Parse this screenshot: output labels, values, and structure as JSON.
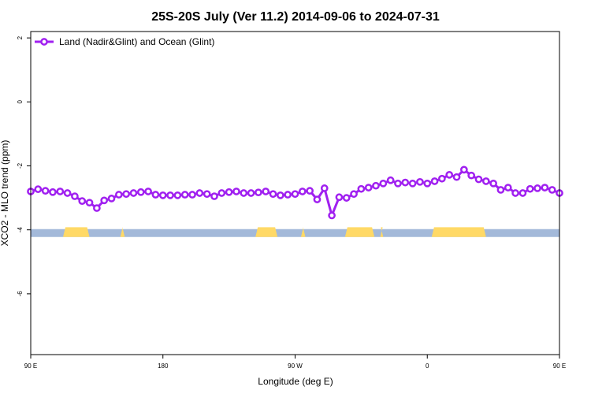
{
  "chart_data": {
    "type": "line",
    "title": "25S-20S July (Ver 11.2)   2014-09-06 to 2024-07-31",
    "xlabel": "Longitude (deg E)",
    "ylabel": "XCO2 - MLO trend (ppm)",
    "xlim": [
      90,
      450
    ],
    "ylim": [
      -7.9,
      2.2
    ],
    "x_ticks": [
      90,
      180,
      270,
      360,
      450,
      540
    ],
    "x_tick_labels": [
      "90 E",
      "180",
      "90 W",
      "0",
      "90 E",
      "180"
    ],
    "y_ticks": [
      -6,
      -4,
      -2,
      0,
      2
    ],
    "y_tick_labels": [
      "-6",
      "-4",
      "-2",
      "0",
      "2"
    ],
    "grid": false,
    "legend_position": "top-left",
    "series_color": "#a020f0",
    "land_color": "#ffd966",
    "ocean_color": "#a3b9d9",
    "surface_strip_y": -4.1,
    "land_segments": [
      [
        112,
        130
      ],
      [
        151,
        154
      ],
      [
        243,
        258
      ],
      [
        274,
        277
      ],
      [
        304,
        324
      ],
      [
        328,
        330
      ],
      [
        363,
        400
      ]
    ],
    "series": [
      {
        "name": "Land (Nadir&Glint) and Ocean (Glint)",
        "x": [
          90,
          95,
          100,
          105,
          110,
          115,
          120,
          125,
          130,
          135,
          140,
          145,
          150,
          155,
          160,
          165,
          170,
          175,
          180,
          185,
          190,
          195,
          200,
          205,
          210,
          215,
          220,
          225,
          230,
          235,
          240,
          245,
          250,
          255,
          260,
          265,
          270,
          275,
          280,
          285,
          290,
          295,
          300,
          305,
          310,
          315,
          320,
          325,
          330,
          335,
          340,
          345,
          350,
          355,
          360,
          365,
          370,
          375,
          380,
          385,
          390,
          395,
          400,
          405,
          410,
          415,
          420,
          425,
          430,
          435,
          440,
          445,
          450
        ],
        "y": [
          -2.8,
          -2.73,
          -2.78,
          -2.82,
          -2.8,
          -2.85,
          -2.95,
          -3.1,
          -3.15,
          -3.32,
          -3.08,
          -3.02,
          -2.9,
          -2.88,
          -2.85,
          -2.82,
          -2.8,
          -2.9,
          -2.92,
          -2.92,
          -2.92,
          -2.9,
          -2.9,
          -2.85,
          -2.88,
          -2.95,
          -2.85,
          -2.82,
          -2.8,
          -2.85,
          -2.85,
          -2.83,
          -2.8,
          -2.88,
          -2.92,
          -2.9,
          -2.88,
          -2.8,
          -2.78,
          -3.05,
          -2.7,
          -3.55,
          -2.98,
          -3.0,
          -2.88,
          -2.72,
          -2.68,
          -2.62,
          -2.55,
          -2.45,
          -2.55,
          -2.52,
          -2.55,
          -2.5,
          -2.55,
          -2.48,
          -2.4,
          -2.28,
          -2.35,
          -2.12,
          -2.3,
          -2.42,
          -2.48,
          -2.55,
          -2.75,
          -2.68,
          -2.85,
          -2.85,
          -2.72,
          -2.7,
          -2.68,
          -2.75,
          -2.85
        ]
      }
    ]
  }
}
